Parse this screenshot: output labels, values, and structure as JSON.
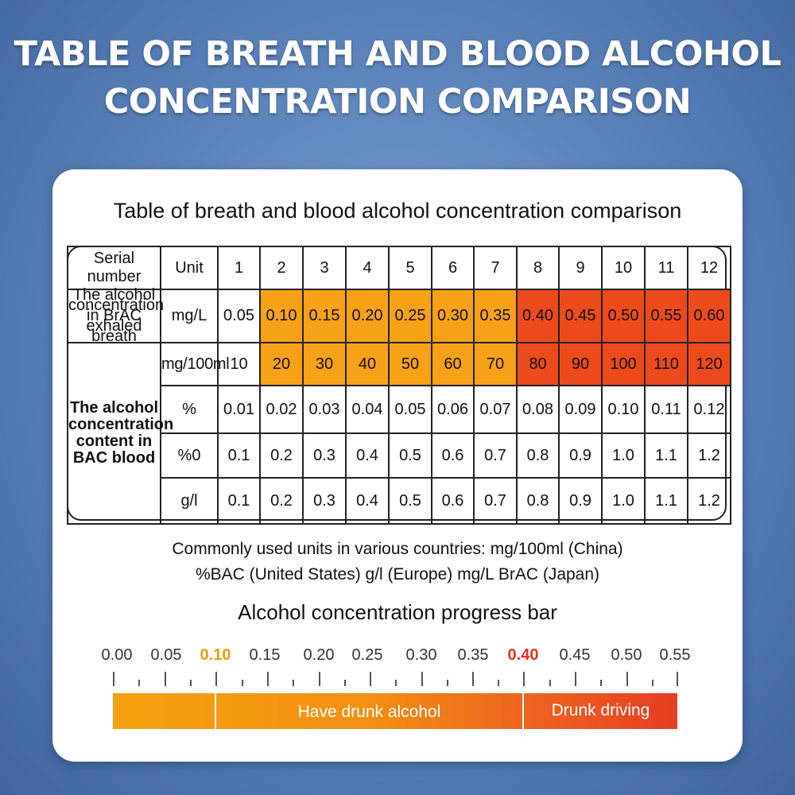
{
  "header": {
    "title_line1": "TABLE OF BREATH AND BLOOD ALCOHOL",
    "title_line2": "CONCENTRATION COMPARISON"
  },
  "card": {
    "title": "Table of breath and blood alcohol concentration comparison"
  },
  "table": {
    "serial_label": "Serial number",
    "unit_label": "Unit",
    "serials": [
      "1",
      "2",
      "3",
      "4",
      "5",
      "6",
      "7",
      "8",
      "9",
      "10",
      "11",
      "12"
    ],
    "brac_label": "The alcohol concentration in BrAC exhaled breath",
    "bac_label": "The alcohol concentration content in BAC blood",
    "rows": [
      {
        "unit": "mg/L",
        "values": [
          "0.05",
          "0.10",
          "0.15",
          "0.20",
          "0.25",
          "0.30",
          "0.35",
          "0.40",
          "0.45",
          "0.50",
          "0.55",
          "0.60"
        ]
      },
      {
        "unit": "mg/100ml",
        "values": [
          "10",
          "20",
          "30",
          "40",
          "50",
          "60",
          "70",
          "80",
          "90",
          "100",
          "110",
          "120"
        ]
      },
      {
        "unit": "%",
        "values": [
          "0.01",
          "0.02",
          "0.03",
          "0.04",
          "0.05",
          "0.06",
          "0.07",
          "0.08",
          "0.09",
          "0.10",
          "0.11",
          "0.12"
        ]
      },
      {
        "unit": "%0",
        "values": [
          "0.1",
          "0.2",
          "0.3",
          "0.4",
          "0.5",
          "0.6",
          "0.7",
          "0.8",
          "0.9",
          "1.0",
          "1.1",
          "1.2"
        ]
      },
      {
        "unit": "g/l",
        "values": [
          "0.1",
          "0.2",
          "0.3",
          "0.4",
          "0.5",
          "0.6",
          "0.7",
          "0.8",
          "0.9",
          "1.0",
          "1.1",
          "1.2"
        ]
      }
    ],
    "colors": {
      "orange": "#f7a117",
      "red": "#ec4a1a"
    }
  },
  "notes": {
    "line1": "Commonly used units in various countries: mg/100ml (China)",
    "line2": "%BAC (United States) g/l (Europe) mg/L BrAC (Japan)"
  },
  "progress": {
    "title": "Alcohol concentration progress bar",
    "ticks": [
      "0.00",
      "0.05",
      "0.10",
      "0.15",
      "0.20",
      "0.25",
      "0.30",
      "0.35",
      "0.40",
      "0.45",
      "0.50",
      "0.55"
    ],
    "highlight_orange": "0.10",
    "highlight_red": "0.40",
    "segment_drunk": "Have drunk alcohol",
    "segment_driving": "Drunk driving"
  }
}
